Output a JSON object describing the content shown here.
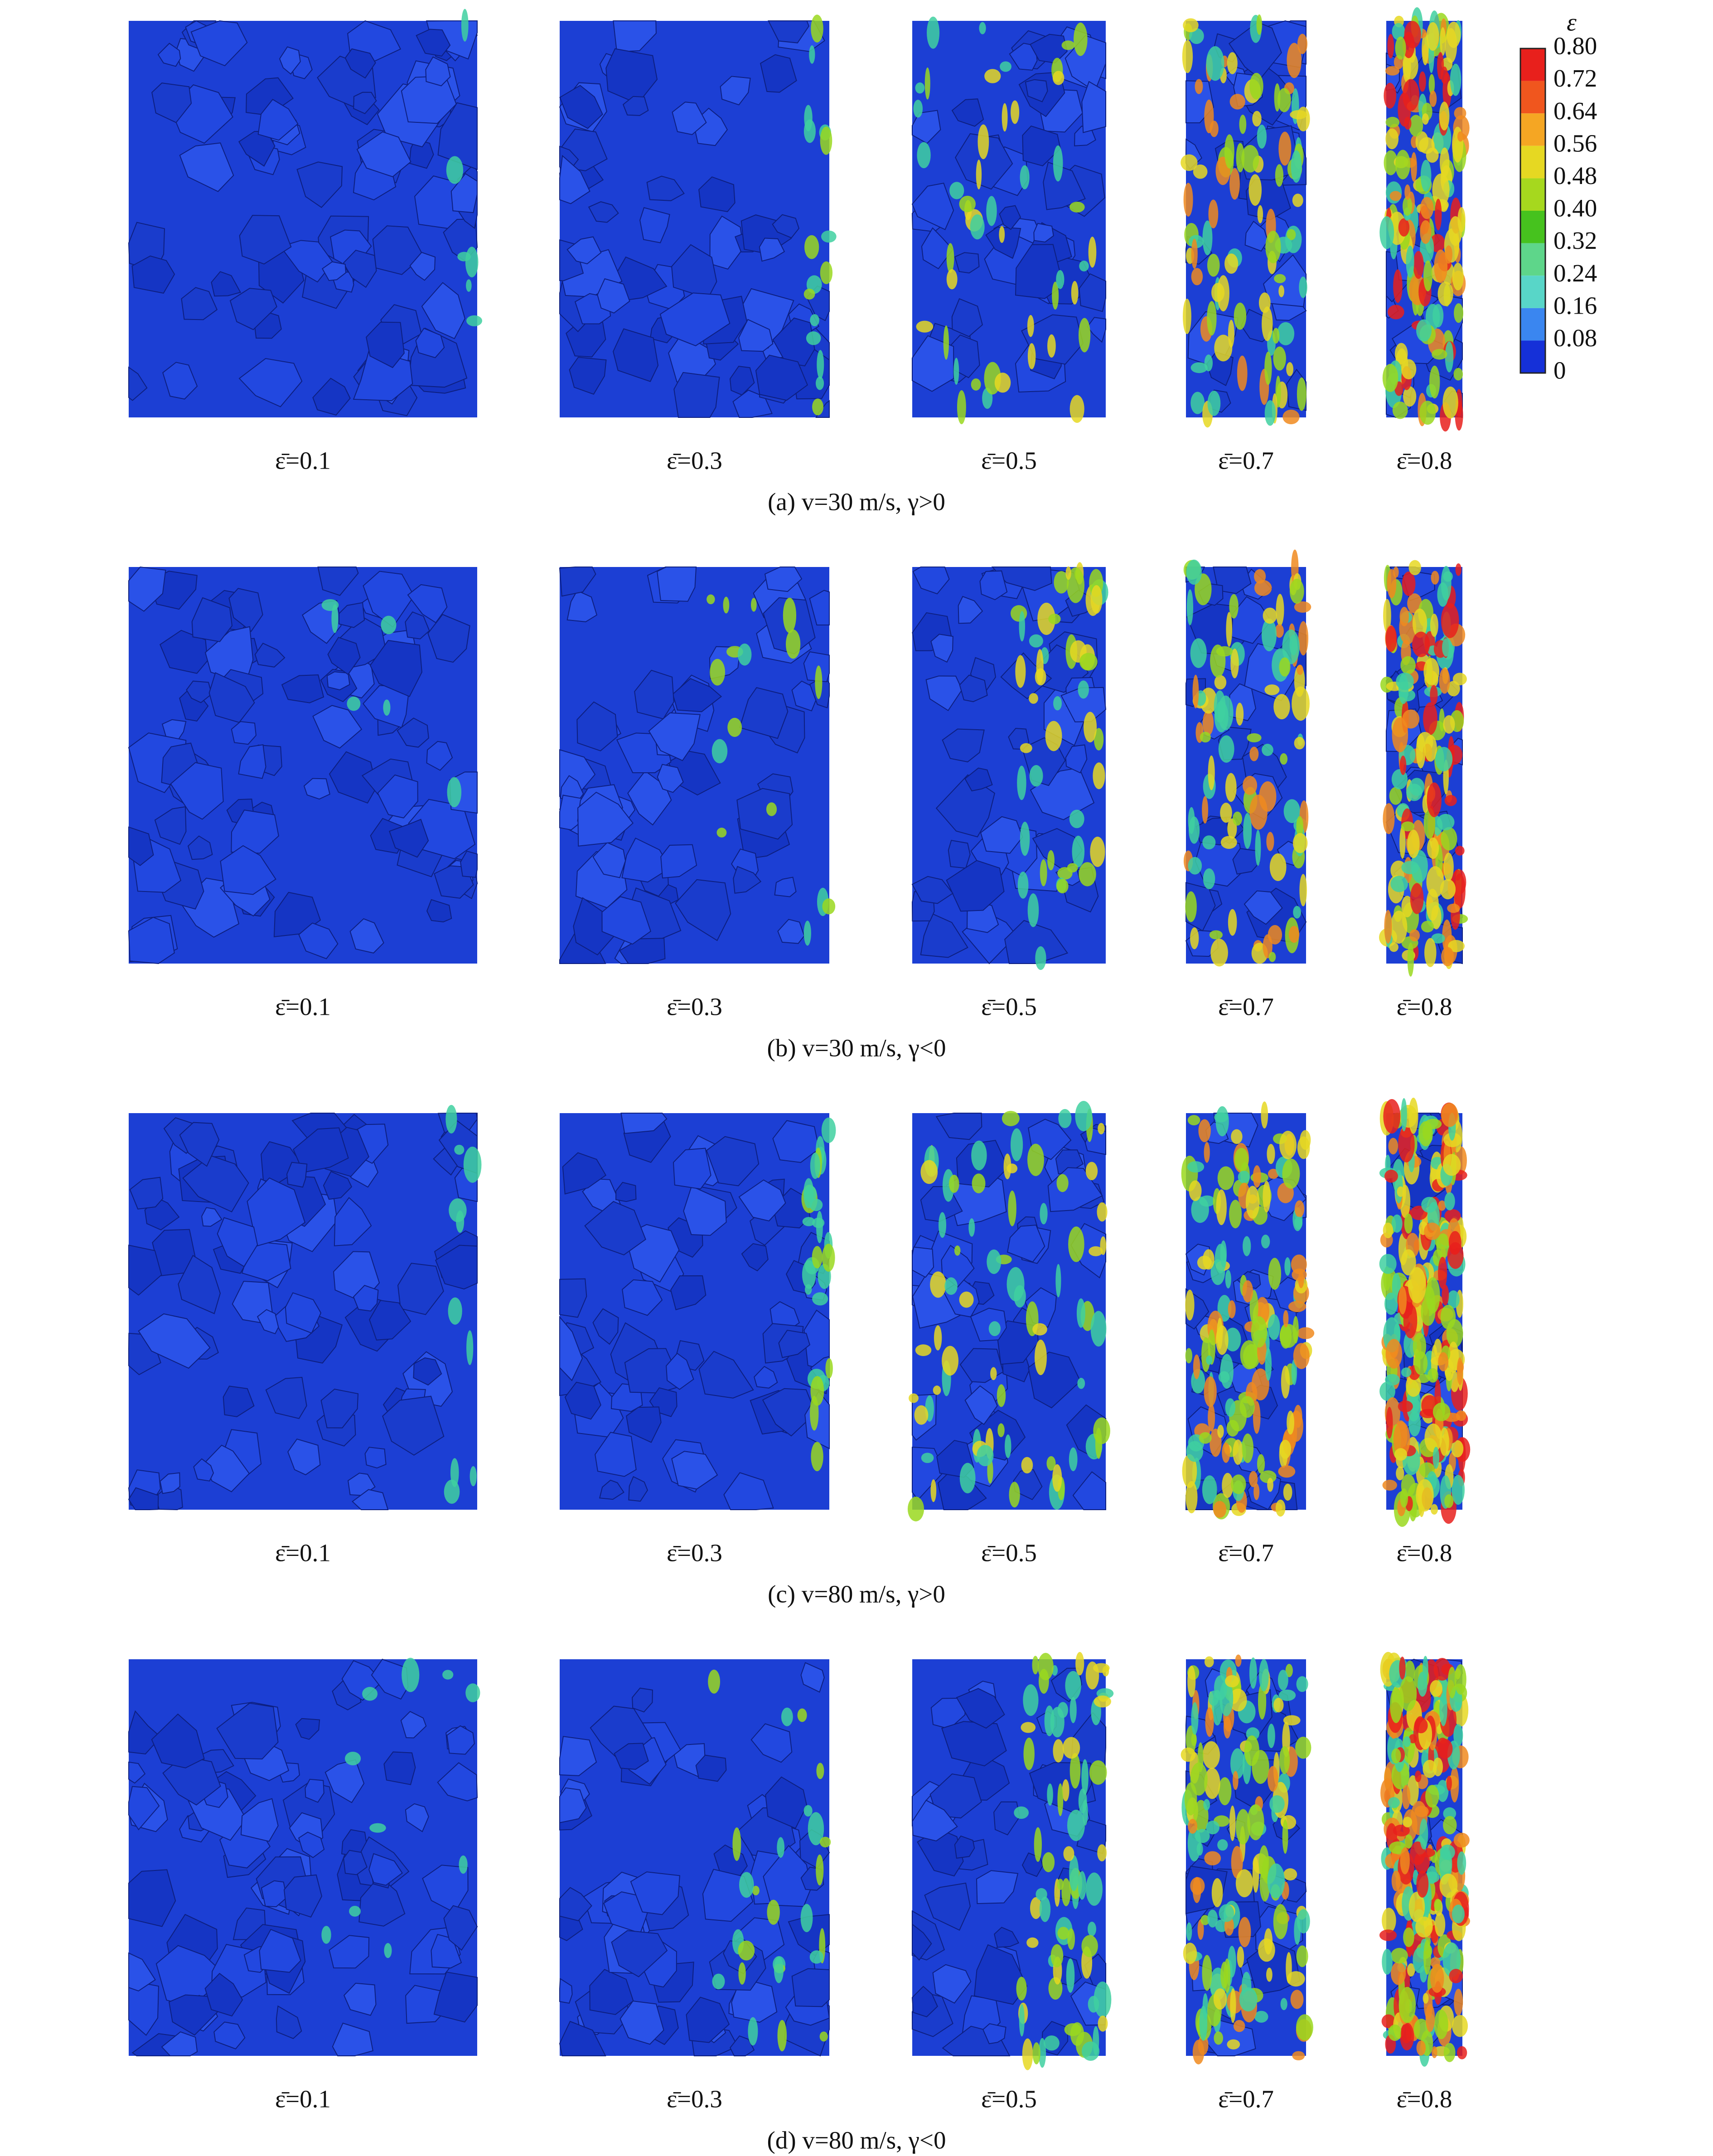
{
  "colorbar": {
    "title": "ε",
    "ticks": [
      "0.80",
      "0.72",
      "0.64",
      "0.56",
      "0.48",
      "0.40",
      "0.32",
      "0.24",
      "0.16",
      "0.08",
      "0"
    ]
  },
  "rows": [
    {
      "caption": "(a) v=30 m/s, γ>0",
      "panels": [
        "ε̄=0.1",
        "ε̄=0.3",
        "ε̄=0.5",
        "ε̄=0.7",
        "ε̄=0.8"
      ]
    },
    {
      "caption": "(b) v=30 m/s, γ<0",
      "panels": [
        "ε̄=0.1",
        "ε̄=0.3",
        "ε̄=0.5",
        "ε̄=0.7",
        "ε̄=0.8"
      ]
    },
    {
      "caption": "(c) v=80 m/s, γ>0",
      "panels": [
        "ε̄=0.1",
        "ε̄=0.3",
        "ε̄=0.5",
        "ε̄=0.7",
        "ε̄=0.8"
      ]
    },
    {
      "caption": "(d) v=80 m/s, γ<0",
      "panels": [
        "ε̄=0.1",
        "ε̄=0.3",
        "ε̄=0.5",
        "ε̄=0.7",
        "ε̄=0.8"
      ]
    }
  ]
}
